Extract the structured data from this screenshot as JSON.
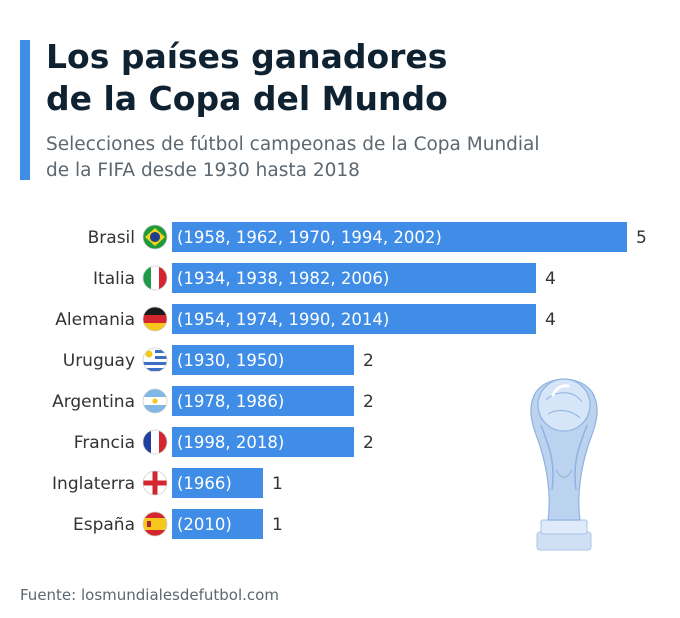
{
  "header": {
    "title_line1": "Los países ganadores",
    "title_line2": "de la Copa del Mundo",
    "subtitle_line1": "Selecciones de fútbol campeonas de la Copa Mundial",
    "subtitle_line2": "de la FIFA desde 1930 hasta 2018"
  },
  "footer": {
    "source": "Fuente: losmundialesdefutbol.com"
  },
  "colors": {
    "bar": "#3f8de6",
    "accent": "#3f8de6",
    "title": "#0f2232",
    "text": "#333333"
  },
  "chart_data": {
    "type": "bar",
    "orientation": "horizontal",
    "categories": [
      "Brasil",
      "Italia",
      "Alemania",
      "Uruguay",
      "Argentina",
      "Francia",
      "Inglaterra",
      "España"
    ],
    "values": [
      5,
      4,
      4,
      2,
      2,
      2,
      1,
      1
    ],
    "bar_labels": [
      "(1958, 1962, 1970, 1994, 2002)",
      "(1934, 1938, 1982, 2006)",
      "(1954, 1974, 1990, 2014)",
      "(1930, 1950)",
      "(1978, 1986)",
      "(1998, 2018)",
      "(1966)",
      "(2010)"
    ],
    "flags": [
      "brazil-flag",
      "italy-flag",
      "germany-flag",
      "uruguay-flag",
      "argentina-flag",
      "france-flag",
      "england-flag",
      "spain-flag"
    ],
    "xlim": [
      0,
      5
    ],
    "grid": false,
    "legend": "none",
    "title": "Los países ganadores de la Copa del Mundo",
    "xlabel": "",
    "ylabel": ""
  }
}
